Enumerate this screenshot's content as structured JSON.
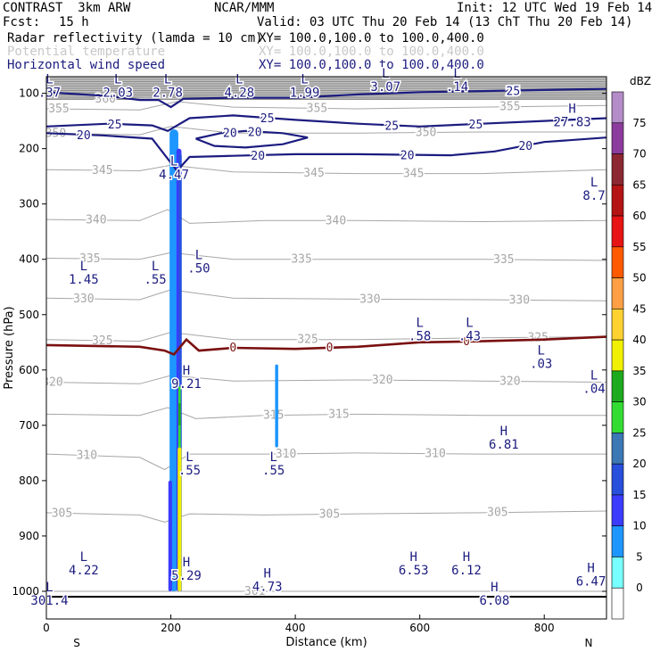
{
  "header": {
    "model": "CONTRAST  3km ARW",
    "org": "NCAR/MMM",
    "init": "Init: 12 UTC Wed 19 Feb 14",
    "fcst_label": "Fcst:",
    "fcst_value": "15 h",
    "valid": "Valid: 03 UTC Thu 20 Feb 14 (13 ChT Thu 20 Feb 14)",
    "field1_name": "Radar reflectivity (lamda = 10 cm)",
    "field1_xy": "XY= 100.0,100.0 to 100.0,400.0",
    "field2_name": "Potential temperature",
    "field2_xy": "XY= 100.0,100.0 to 100.0,400.0",
    "field3_name": "Horizontal wind speed",
    "field3_xy": "XY= 100.0,100.0 to 100.0,400.0"
  },
  "colors": {
    "wind": "#1c1c80",
    "theta": "#a6a6a6",
    "freezing": "#7a1010",
    "ground": "#000000"
  },
  "chart_data": {
    "type": "cross-section",
    "xlabel": "Distance (km)",
    "ylabel": "Pressure (hPa)",
    "xlim": [
      0,
      900
    ],
    "ylim": [
      1050,
      70
    ],
    "x_ticks": [
      "0",
      "200",
      "400",
      "600",
      "800"
    ],
    "x_tick_values": [
      0,
      200,
      400,
      600,
      800
    ],
    "y_ticks": [
      "100",
      "200",
      "300",
      "400",
      "500",
      "600",
      "700",
      "800",
      "900",
      "1000"
    ],
    "y_tick_values": [
      100,
      200,
      300,
      400,
      500,
      600,
      700,
      800,
      900,
      1000
    ],
    "x_end_labels": {
      "left": "S",
      "right": "N"
    },
    "ground_pressure": 1010,
    "colorbar": {
      "title": "dBZ",
      "levels": [
        "75",
        "70",
        "65",
        "60",
        "55",
        "50",
        "45",
        "40",
        "35",
        "30",
        "25",
        "20",
        "15",
        "10",
        "5",
        "0"
      ],
      "colors": [
        "#b48cc8",
        "#8c3c9c",
        "#8c2832",
        "#b41414",
        "#e61414",
        "#ff5a00",
        "#ffa046",
        "#ffd232",
        "#f0f000",
        "#1eaa1e",
        "#32dc32",
        "#3c78b4",
        "#2850dc",
        "#3c3cff",
        "#1e96ff",
        "#78ffff",
        "#ffffff"
      ]
    },
    "reflectivity_cells": [
      {
        "x": 205,
        "p_top": 165,
        "p_bot": 1000,
        "width": 14,
        "dbz": 5
      },
      {
        "x": 213,
        "p_top": 200,
        "p_bot": 1000,
        "width": 8,
        "dbz": 10
      },
      {
        "x": 215,
        "p_top": 210,
        "p_bot": 1000,
        "width": 5,
        "dbz": 15
      },
      {
        "x": 214,
        "p_top": 630,
        "p_bot": 760,
        "width": 4,
        "dbz": 25
      },
      {
        "x": 214,
        "p_top": 660,
        "p_bot": 700,
        "width": 4,
        "dbz": 30
      },
      {
        "x": 214,
        "p_top": 740,
        "p_bot": 1000,
        "width": 6,
        "dbz": 35
      },
      {
        "x": 199,
        "p_top": 800,
        "p_bot": 1000,
        "width": 6,
        "dbz": 10
      },
      {
        "x": 370,
        "p_top": 590,
        "p_bot": 740,
        "width": 5,
        "dbz": 5
      }
    ],
    "freezing_level": {
      "label": "0",
      "points": [
        [
          0,
          555
        ],
        [
          150,
          558
        ],
        [
          190,
          565
        ],
        [
          205,
          572
        ],
        [
          225,
          545
        ],
        [
          245,
          565
        ],
        [
          300,
          560
        ],
        [
          400,
          562
        ],
        [
          500,
          558
        ],
        [
          600,
          550
        ],
        [
          700,
          548
        ],
        [
          800,
          545
        ],
        [
          900,
          540
        ]
      ],
      "label_x": [
        300,
        455,
        675
      ]
    },
    "wind_contours": [
      {
        "label": "25",
        "points": [
          [
            0,
            98
          ],
          [
            100,
            105
          ],
          [
            150,
            112
          ],
          [
            180,
            112
          ],
          [
            200,
            125
          ],
          [
            220,
            110
          ],
          [
            300,
            108
          ],
          [
            400,
            108
          ],
          [
            500,
            102
          ],
          [
            600,
            98
          ],
          [
            700,
            96
          ],
          [
            900,
            92
          ]
        ],
        "label_x": [
          750
        ]
      },
      {
        "label": "25",
        "points": [
          [
            0,
            160
          ],
          [
            100,
            155
          ],
          [
            170,
            158
          ],
          [
            195,
            168
          ],
          [
            230,
            145
          ],
          [
            300,
            140
          ],
          [
            400,
            148
          ],
          [
            500,
            155
          ],
          [
            600,
            160
          ],
          [
            700,
            155
          ],
          [
            800,
            150
          ],
          [
            900,
            145
          ]
        ],
        "label_x": [
          110,
          355,
          555,
          690
        ]
      },
      {
        "label": "20",
        "points": [
          [
            0,
            172
          ],
          [
            90,
            176
          ],
          [
            170,
            182
          ],
          [
            210,
            240
          ],
          [
            230,
            215
          ],
          [
            300,
            213
          ],
          [
            400,
            210
          ],
          [
            500,
            210
          ],
          [
            650,
            212
          ],
          [
            720,
            205
          ],
          [
            800,
            188
          ],
          [
            900,
            180
          ]
        ],
        "label_x": [
          60,
          340,
          580,
          770
        ]
      },
      {
        "label": "20",
        "points": [
          [
            240,
            182
          ],
          [
            280,
            172
          ],
          [
            320,
            168
          ],
          [
            380,
            172
          ],
          [
            420,
            180
          ],
          [
            380,
            192
          ],
          [
            320,
            198
          ],
          [
            270,
            195
          ],
          [
            240,
            182
          ]
        ],
        "label_x": [
          295,
          335
        ]
      }
    ],
    "theta_contours": [
      {
        "label": "360",
        "points": [
          [
            0,
            110
          ],
          [
            100,
            110
          ],
          [
            200,
            105
          ],
          [
            400,
            108
          ],
          [
            600,
            110
          ],
          [
            900,
            110
          ]
        ],
        "label_x": [
          95
        ]
      },
      {
        "label": "355",
        "points": [
          [
            0,
            128
          ],
          [
            150,
            130
          ],
          [
            210,
            115
          ],
          [
            300,
            125
          ],
          [
            500,
            128
          ],
          [
            700,
            125
          ],
          [
            900,
            122
          ]
        ],
        "label_x": [
          20,
          435,
          745
        ]
      },
      {
        "label": "350",
        "points": [
          [
            0,
            172
          ],
          [
            150,
            175
          ],
          [
            200,
            160
          ],
          [
            300,
            172
          ],
          [
            500,
            172
          ],
          [
            700,
            170
          ],
          [
            900,
            170
          ]
        ],
        "label_x": [
          15,
          610
        ]
      },
      {
        "label": "345",
        "points": [
          [
            0,
            238
          ],
          [
            150,
            240
          ],
          [
            200,
            230
          ],
          [
            300,
            242
          ],
          [
            500,
            245
          ],
          [
            700,
            245
          ],
          [
            900,
            238
          ]
        ],
        "label_x": [
          90,
          430,
          590
        ]
      },
      {
        "label": "340",
        "points": [
          [
            0,
            328
          ],
          [
            150,
            330
          ],
          [
            195,
            310
          ],
          [
            230,
            335
          ],
          [
            350,
            330
          ],
          [
            500,
            330
          ],
          [
            700,
            332
          ],
          [
            900,
            330
          ]
        ],
        "label_x": [
          80,
          465
        ]
      },
      {
        "label": "335",
        "points": [
          [
            0,
            398
          ],
          [
            150,
            400
          ],
          [
            200,
            388
          ],
          [
            300,
            400
          ],
          [
            500,
            400
          ],
          [
            700,
            400
          ],
          [
            900,
            402
          ]
        ],
        "label_x": [
          70,
          410,
          735
        ]
      },
      {
        "label": "330",
        "points": [
          [
            0,
            470
          ],
          [
            150,
            473
          ],
          [
            200,
            455
          ],
          [
            300,
            470
          ],
          [
            500,
            472
          ],
          [
            700,
            473
          ],
          [
            900,
            475
          ]
        ],
        "label_x": [
          60,
          520,
          760
        ]
      },
      {
        "label": "325",
        "points": [
          [
            0,
            545
          ],
          [
            150,
            548
          ],
          [
            200,
            532
          ],
          [
            300,
            545
          ],
          [
            500,
            545
          ],
          [
            700,
            542
          ],
          [
            900,
            540
          ]
        ],
        "label_x": [
          90,
          420,
          790
        ]
      },
      {
        "label": "320",
        "points": [
          [
            0,
            622
          ],
          [
            150,
            625
          ],
          [
            200,
            610
          ],
          [
            300,
            620
          ],
          [
            500,
            618
          ],
          [
            700,
            620
          ],
          [
            900,
            622
          ]
        ],
        "label_x": [
          10,
          540,
          745
        ]
      },
      {
        "label": "315",
        "points": [
          [
            0,
            680
          ],
          [
            150,
            682
          ],
          [
            195,
            668
          ],
          [
            240,
            688
          ],
          [
            350,
            682
          ],
          [
            500,
            680
          ],
          [
            700,
            682
          ],
          [
            900,
            682
          ]
        ],
        "label_x": [
          365,
          470
        ]
      },
      {
        "label": "310",
        "points": [
          [
            0,
            752
          ],
          [
            150,
            758
          ],
          [
            190,
            780
          ],
          [
            230,
            752
          ],
          [
            350,
            752
          ],
          [
            500,
            750
          ],
          [
            700,
            752
          ],
          [
            900,
            752
          ]
        ],
        "label_x": [
          65,
          385,
          625
        ]
      },
      {
        "label": "305",
        "points": [
          [
            0,
            858
          ],
          [
            150,
            862
          ],
          [
            190,
            875
          ],
          [
            230,
            860
          ],
          [
            350,
            862
          ],
          [
            500,
            860
          ],
          [
            700,
            858
          ],
          [
            900,
            855
          ]
        ],
        "label_x": [
          25,
          455,
          725
        ]
      },
      {
        "label": "301",
        "points": [
          [
            0,
            1000
          ],
          [
            900,
            1000
          ]
        ],
        "label_x": [
          335
        ]
      }
    ],
    "extrema": [
      {
        "type": "L",
        "value": ".37",
        "x": 5,
        "p": 82
      },
      {
        "type": "L",
        "value": "2.03",
        "x": 115,
        "p": 82
      },
      {
        "type": "L",
        "value": "2.78",
        "x": 195,
        "p": 82
      },
      {
        "type": "L",
        "value": "4.28",
        "x": 310,
        "p": 82
      },
      {
        "type": "L",
        "value": "1.99",
        "x": 415,
        "p": 82
      },
      {
        "type": "L",
        "value": "3.07",
        "x": 545,
        "p": 72
      },
      {
        "type": "L",
        "value": ".14",
        "x": 660,
        "p": 72
      },
      {
        "type": "H",
        "value": "27.83",
        "x": 845,
        "p": 135
      },
      {
        "type": "L",
        "value": "4.47",
        "x": 205,
        "p": 230
      },
      {
        "type": "L",
        "value": "8.7",
        "x": 880,
        "p": 268
      },
      {
        "type": "L",
        "value": "1.45",
        "x": 60,
        "p": 420
      },
      {
        "type": "L",
        "value": ".55",
        "x": 175,
        "p": 420
      },
      {
        "type": "L",
        "value": ".50",
        "x": 245,
        "p": 400
      },
      {
        "type": "L",
        "value": ".58",
        "x": 600,
        "p": 522
      },
      {
        "type": "L",
        "value": ".43",
        "x": 680,
        "p": 522
      },
      {
        "type": "L",
        "value": ".03",
        "x": 795,
        "p": 572
      },
      {
        "type": "L",
        "value": ".04",
        "x": 880,
        "p": 617
      },
      {
        "type": "H",
        "value": "9.21",
        "x": 225,
        "p": 608
      },
      {
        "type": "H",
        "value": "6.81",
        "x": 735,
        "p": 718
      },
      {
        "type": "L",
        "value": ".55",
        "x": 230,
        "p": 765
      },
      {
        "type": "L",
        "value": ".55",
        "x": 365,
        "p": 765
      },
      {
        "type": "L",
        "value": "4.22",
        "x": 60,
        "p": 945
      },
      {
        "type": "H",
        "value": "5.29",
        "x": 225,
        "p": 955
      },
      {
        "type": "H",
        "value": "4.73",
        "x": 355,
        "p": 975
      },
      {
        "type": "H",
        "value": "6.53",
        "x": 590,
        "p": 945
      },
      {
        "type": "H",
        "value": "6.12",
        "x": 675,
        "p": 945
      },
      {
        "type": "H",
        "value": "6.47",
        "x": 875,
        "p": 965
      },
      {
        "type": "H",
        "value": "6.08",
        "x": 720,
        "p": 1000
      },
      {
        "type": "L",
        "value": "301.4",
        "x": 5,
        "p": 1000
      }
    ]
  }
}
